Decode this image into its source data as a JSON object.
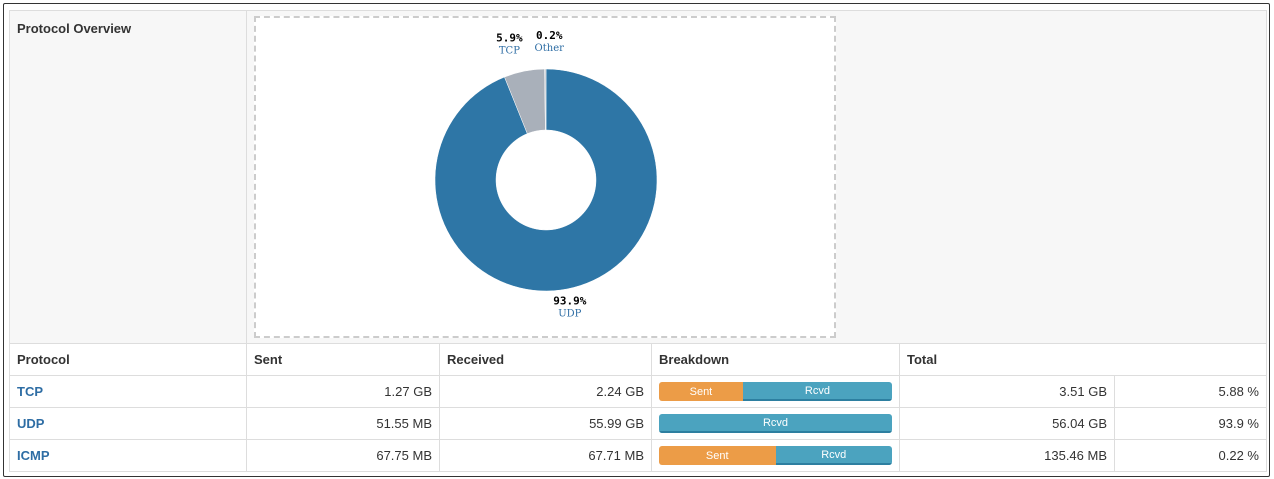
{
  "panel": {
    "title": "Protocol Overview"
  },
  "chart_data": {
    "type": "pie",
    "donut": true,
    "slices": [
      {
        "name": "UDP",
        "value": 93.9,
        "label": "93.9%",
        "color": "#2e76a6"
      },
      {
        "name": "TCP",
        "value": 5.9,
        "label": "5.9%",
        "color": "#a9b0ba"
      },
      {
        "name": "Other",
        "value": 0.2,
        "label": "0.2%",
        "color": "#c8ccd2"
      }
    ]
  },
  "table": {
    "headers": [
      "Protocol",
      "Sent",
      "Received",
      "Breakdown",
      "Total"
    ],
    "rows": [
      {
        "protocol": "TCP",
        "sent": "1.27 GB",
        "received": "2.24 GB",
        "sent_label": "Sent",
        "rcvd_label": "Rcvd",
        "sent_fraction": 0.36,
        "total": "3.51 GB",
        "percent": "5.88 %"
      },
      {
        "protocol": "UDP",
        "sent": "51.55 MB",
        "received": "55.99 GB",
        "sent_label": "",
        "rcvd_label": "Rcvd",
        "sent_fraction": 0,
        "total": "56.04 GB",
        "percent": "93.9 %"
      },
      {
        "protocol": "ICMP",
        "sent": "67.75 MB",
        "received": "67.71 MB",
        "sent_label": "Sent",
        "rcvd_label": "Rcvd",
        "sent_fraction": 0.5,
        "total": "135.46 MB",
        "percent": "0.22 %"
      }
    ]
  }
}
